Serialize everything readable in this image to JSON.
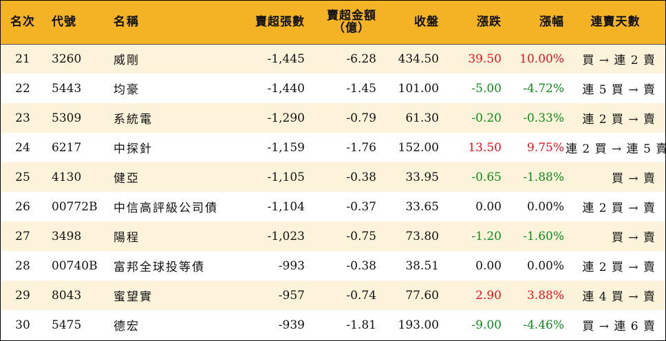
{
  "headers": {
    "rank": "名次",
    "code": "代號",
    "name": "名稱",
    "sell_vol": "賣超張數",
    "sell_amt_line1": "賣超金額",
    "sell_amt_line2": "（億）",
    "close": "收盤",
    "change": "漲跌",
    "change_pct": "漲幅",
    "streak": "連賣天數"
  },
  "colors": {
    "header_bg": "#f4b324",
    "stripe_bg": "#fdf3da",
    "up": "#e0141e",
    "down": "#118a1c"
  },
  "rows": [
    {
      "rank": "21",
      "code": "3260",
      "name": "威剛",
      "sell_vol": "-1,445",
      "sell_amt": "-6.28",
      "close": "434.50",
      "change": "39.50",
      "change_pct": "10.00%",
      "dir": "up",
      "streak": "買 → 連 2 賣"
    },
    {
      "rank": "22",
      "code": "5443",
      "name": "均豪",
      "sell_vol": "-1,440",
      "sell_amt": "-1.45",
      "close": "101.00",
      "change": "-5.00",
      "change_pct": "-4.72%",
      "dir": "down",
      "streak": "連 5 買 → 賣"
    },
    {
      "rank": "23",
      "code": "5309",
      "name": "系統電",
      "sell_vol": "-1,290",
      "sell_amt": "-0.79",
      "close": "61.30",
      "change": "-0.20",
      "change_pct": "-0.33%",
      "dir": "down",
      "streak": "連 2 買 → 賣"
    },
    {
      "rank": "24",
      "code": "6217",
      "name": "中探針",
      "sell_vol": "-1,159",
      "sell_amt": "-1.76",
      "close": "152.00",
      "change": "13.50",
      "change_pct": "9.75%",
      "dir": "up",
      "streak": "連 2 買 → 連 5 賣"
    },
    {
      "rank": "25",
      "code": "4130",
      "name": "健亞",
      "sell_vol": "-1,105",
      "sell_amt": "-0.38",
      "close": "33.95",
      "change": "-0.65",
      "change_pct": "-1.88%",
      "dir": "down",
      "streak": "買 → 賣"
    },
    {
      "rank": "26",
      "code": "00772B",
      "name": "中信高評級公司債",
      "sell_vol": "-1,104",
      "sell_amt": "-0.37",
      "close": "33.65",
      "change": "0.00",
      "change_pct": "0.00%",
      "dir": "flat",
      "streak": "連 2 買 → 賣"
    },
    {
      "rank": "27",
      "code": "3498",
      "name": "陽程",
      "sell_vol": "-1,023",
      "sell_amt": "-0.75",
      "close": "73.80",
      "change": "-1.20",
      "change_pct": "-1.60%",
      "dir": "down",
      "streak": "買 → 賣"
    },
    {
      "rank": "28",
      "code": "00740B",
      "name": "富邦全球投等債",
      "sell_vol": "-993",
      "sell_amt": "-0.38",
      "close": "38.51",
      "change": "0.00",
      "change_pct": "0.00%",
      "dir": "flat",
      "streak": "連 2 買 → 賣"
    },
    {
      "rank": "29",
      "code": "8043",
      "name": "蜜望實",
      "sell_vol": "-957",
      "sell_amt": "-0.74",
      "close": "77.60",
      "change": "2.90",
      "change_pct": "3.88%",
      "dir": "up",
      "streak": "連 4 買 → 賣"
    },
    {
      "rank": "30",
      "code": "5475",
      "name": "德宏",
      "sell_vol": "-939",
      "sell_amt": "-1.81",
      "close": "193.00",
      "change": "-9.00",
      "change_pct": "-4.46%",
      "dir": "down",
      "streak": "買 → 連 6 賣"
    }
  ]
}
